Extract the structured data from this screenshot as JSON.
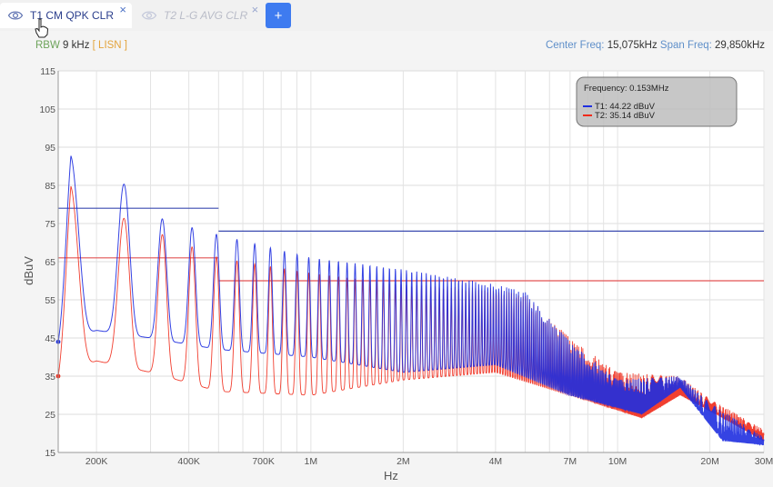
{
  "tabs": [
    {
      "label": "T1 CM QPK CLR",
      "active": true,
      "icon": "eye-icon",
      "close_glyph": "×"
    },
    {
      "label": "T2 L-G AVG CLR",
      "active": false,
      "icon": "eye-icon",
      "close_glyph": "×"
    }
  ],
  "add_tab_label": "+",
  "info": {
    "rbw_key": "RBW",
    "rbw_value": "9 kHz",
    "lisn": "[ LISN ]",
    "center_key": "Center Freq:",
    "center_value": "15,075kHz",
    "span_key": "Span Freq:",
    "span_value": "29,850kHz"
  },
  "colors": {
    "t1": "#1f2fe0",
    "t2": "#f02a1a",
    "limit_t1": "#3b4bb0",
    "limit_t2": "#e25555",
    "accent": "#3e7bf0"
  },
  "chart_data": {
    "type": "line",
    "xlabel": "Hz",
    "ylabel": "dBuV",
    "xscale": "log",
    "xlim": [
      150000,
      30000000
    ],
    "ylim": [
      15,
      115
    ],
    "yticks": [
      15,
      25,
      35,
      45,
      55,
      65,
      75,
      85,
      95,
      105,
      115
    ],
    "xticks": [
      {
        "value": 200000,
        "label": "200K"
      },
      {
        "value": 400000,
        "label": "400K"
      },
      {
        "value": 700000,
        "label": "700K"
      },
      {
        "value": 1000000,
        "label": "1M"
      },
      {
        "value": 2000000,
        "label": "2M"
      },
      {
        "value": 4000000,
        "label": "4M"
      },
      {
        "value": 7000000,
        "label": "7M"
      },
      {
        "value": 10000000,
        "label": "10M"
      },
      {
        "value": 20000000,
        "label": "20M"
      },
      {
        "value": 30000000,
        "label": "30M"
      }
    ],
    "grid": true,
    "series": [
      {
        "name": "T1",
        "color": "#1f2fe0",
        "peaks": [
          {
            "x": 150000,
            "y": 44
          },
          {
            "x": 165000,
            "y": 93
          },
          {
            "x": 250000,
            "y": 85
          },
          {
            "x": 330000,
            "y": 76
          },
          {
            "x": 500000,
            "y": 72
          },
          {
            "x": 1000000,
            "y": 66
          },
          {
            "x": 2000000,
            "y": 63
          },
          {
            "x": 4000000,
            "y": 59
          },
          {
            "x": 5000000,
            "y": 57
          },
          {
            "x": 7000000,
            "y": 44
          },
          {
            "x": 10000000,
            "y": 34
          },
          {
            "x": 16000000,
            "y": 35
          },
          {
            "x": 20000000,
            "y": 28
          },
          {
            "x": 30000000,
            "y": 19
          }
        ],
        "troughs": [
          {
            "x": 150000,
            "y": 44
          },
          {
            "x": 200000,
            "y": 47
          },
          {
            "x": 300000,
            "y": 45
          },
          {
            "x": 500000,
            "y": 42
          },
          {
            "x": 1000000,
            "y": 40
          },
          {
            "x": 2000000,
            "y": 36
          },
          {
            "x": 4000000,
            "y": 38
          },
          {
            "x": 7000000,
            "y": 30
          },
          {
            "x": 12000000,
            "y": 25
          },
          {
            "x": 16000000,
            "y": 32
          },
          {
            "x": 22000000,
            "y": 18
          },
          {
            "x": 30000000,
            "y": 17
          }
        ]
      },
      {
        "name": "T2",
        "color": "#f02a1a",
        "peaks": [
          {
            "x": 150000,
            "y": 35
          },
          {
            "x": 165000,
            "y": 85
          },
          {
            "x": 250000,
            "y": 76
          },
          {
            "x": 330000,
            "y": 72
          },
          {
            "x": 500000,
            "y": 66
          },
          {
            "x": 1000000,
            "y": 62
          },
          {
            "x": 2000000,
            "y": 59
          },
          {
            "x": 4000000,
            "y": 58
          },
          {
            "x": 5000000,
            "y": 56
          },
          {
            "x": 7000000,
            "y": 45
          },
          {
            "x": 10000000,
            "y": 36
          },
          {
            "x": 16000000,
            "y": 35
          },
          {
            "x": 20000000,
            "y": 29
          },
          {
            "x": 30000000,
            "y": 21
          }
        ],
        "troughs": [
          {
            "x": 150000,
            "y": 35
          },
          {
            "x": 200000,
            "y": 39
          },
          {
            "x": 300000,
            "y": 36
          },
          {
            "x": 500000,
            "y": 31
          },
          {
            "x": 1000000,
            "y": 30
          },
          {
            "x": 2000000,
            "y": 34
          },
          {
            "x": 4000000,
            "y": 36
          },
          {
            "x": 7000000,
            "y": 30
          },
          {
            "x": 12000000,
            "y": 24
          },
          {
            "x": 16000000,
            "y": 30
          },
          {
            "x": 22000000,
            "y": 24
          },
          {
            "x": 30000000,
            "y": 18
          }
        ]
      }
    ],
    "limit_lines": [
      {
        "series": "T1",
        "color": "#3b4bb0",
        "segments": [
          {
            "x0": 150000,
            "x1": 500000,
            "y": 79
          },
          {
            "x0": 500000,
            "x1": 30000000,
            "y": 73
          }
        ]
      },
      {
        "series": "T2",
        "color": "#e25555",
        "segments": [
          {
            "x0": 150000,
            "x1": 500000,
            "y": 66
          },
          {
            "x0": 500000,
            "x1": 30000000,
            "y": 60
          }
        ]
      }
    ],
    "tooltip": {
      "title": "Frequency: 0.153MHz",
      "entries": [
        {
          "label": "T1: 44.22 dBuV",
          "color": "#1f2fe0"
        },
        {
          "label": "T2: 35.14 dBuV",
          "color": "#f02a1a"
        }
      ]
    }
  }
}
